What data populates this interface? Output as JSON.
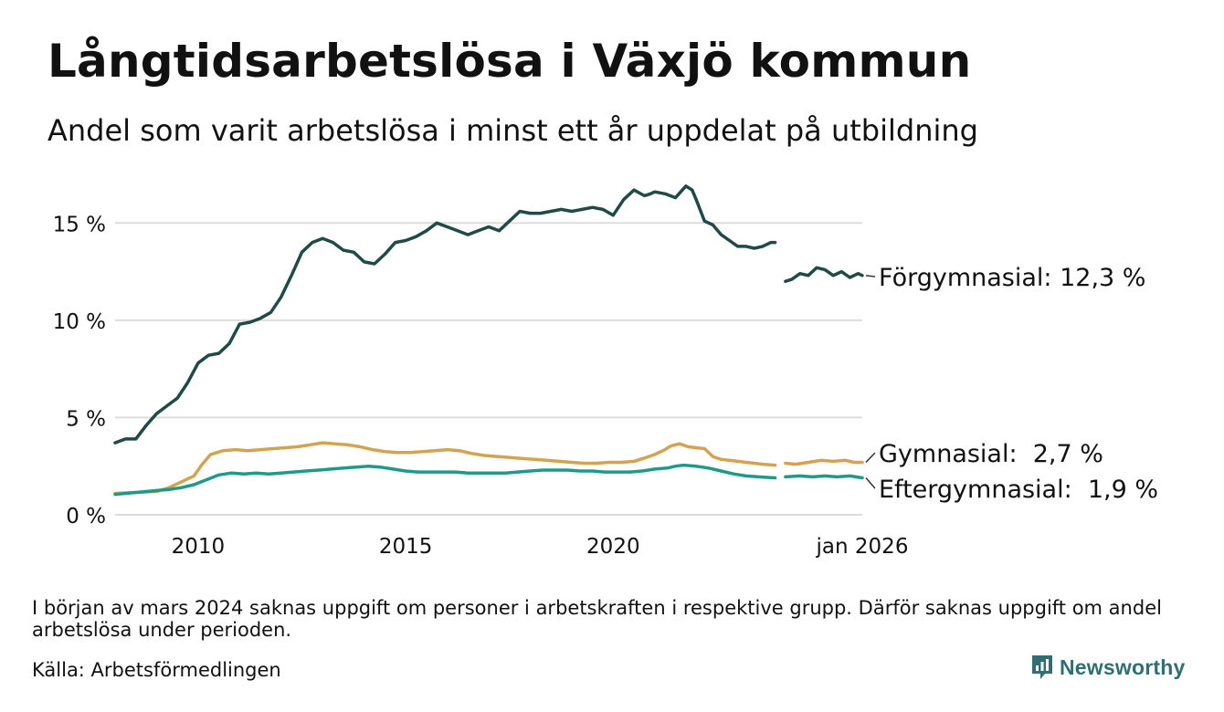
{
  "title": "Långtidsarbetslösa i Växjö kommun",
  "subtitle": "Andel som varit arbetslösa i minst ett år uppdelat på utbildning",
  "footnote": "I början av mars 2024 saknas uppgift om personer i arbetskraften i respektive grupp. Därför saknas uppgift om andel arbetslösa under perioden.",
  "source": "Källa: Arbetsförmedlingen",
  "brand": {
    "name": "Newsworthy",
    "icon": "newsworthy-logo-icon",
    "color": "#2f6f73"
  },
  "chart_data": {
    "type": "line",
    "title": "Långtidsarbetslösa i Växjö kommun",
    "xlabel": "",
    "ylabel": "",
    "xlim": [
      2008.0,
      2026.0
    ],
    "ylim": [
      0,
      17.5
    ],
    "yticks": [
      0,
      5,
      10,
      15
    ],
    "ytick_labels": [
      "0 %",
      "5 %",
      "10 %",
      "15 %"
    ],
    "xticks": [
      2010,
      2015,
      2020,
      2026
    ],
    "xtick_labels": [
      "2010",
      "2015",
      "2020",
      "jan 2026"
    ],
    "grid": "horizontal",
    "gap": [
      2023.9,
      2024.15
    ],
    "series": [
      {
        "name": "Förgymnasial",
        "label": "Förgymnasial: 12,3 %",
        "color": "#1f4a45",
        "x": [
          2008.0,
          2008.25,
          2008.5,
          2008.75,
          2009.0,
          2009.25,
          2009.5,
          2009.75,
          2010.0,
          2010.25,
          2010.5,
          2010.75,
          2011.0,
          2011.25,
          2011.5,
          2011.75,
          2012.0,
          2012.25,
          2012.5,
          2012.75,
          2013.0,
          2013.25,
          2013.5,
          2013.75,
          2014.0,
          2014.25,
          2014.5,
          2014.75,
          2015.0,
          2015.25,
          2015.5,
          2015.75,
          2016.0,
          2016.25,
          2016.5,
          2016.75,
          2017.0,
          2017.25,
          2017.5,
          2017.75,
          2018.0,
          2018.25,
          2018.5,
          2018.75,
          2019.0,
          2019.25,
          2019.5,
          2019.75,
          2020.0,
          2020.25,
          2020.5,
          2020.75,
          2020.9,
          2021.0,
          2021.25,
          2021.5,
          2021.75,
          2021.9,
          2022.0,
          2022.2,
          2022.4,
          2022.6,
          2022.8,
          2023.0,
          2023.2,
          2023.4,
          2023.6,
          2023.8,
          2023.9,
          2024.15,
          2024.3,
          2024.5,
          2024.7,
          2024.9,
          2025.1,
          2025.3,
          2025.5,
          2025.7,
          2025.9,
          2026.0
        ],
        "values": [
          3.7,
          3.9,
          3.9,
          4.6,
          5.2,
          5.6,
          6.0,
          6.8,
          7.8,
          8.2,
          8.3,
          8.8,
          9.8,
          9.9,
          10.1,
          10.4,
          11.2,
          12.3,
          13.5,
          14.0,
          14.2,
          14.0,
          13.6,
          13.5,
          13.0,
          12.9,
          13.4,
          14.0,
          14.1,
          14.3,
          14.6,
          15.0,
          14.8,
          14.6,
          14.4,
          14.6,
          14.8,
          14.6,
          15.1,
          15.6,
          15.5,
          15.5,
          15.6,
          15.7,
          15.6,
          15.7,
          15.8,
          15.7,
          15.4,
          16.2,
          16.7,
          16.4,
          16.5,
          16.6,
          16.5,
          16.3,
          16.9,
          16.7,
          16.2,
          15.1,
          14.9,
          14.4,
          14.1,
          13.8,
          13.8,
          13.7,
          13.8,
          14.0,
          14.0,
          12.0,
          12.1,
          12.4,
          12.3,
          12.7,
          12.6,
          12.3,
          12.5,
          12.2,
          12.4,
          12.3
        ]
      },
      {
        "name": "Gymnasial",
        "label": "Gymnasial:  2,7 %",
        "color": "#d4a351",
        "x": [
          2008.0,
          2008.5,
          2009.0,
          2009.3,
          2009.6,
          2009.9,
          2010.1,
          2010.3,
          2010.6,
          2010.9,
          2011.2,
          2011.5,
          2011.8,
          2012.1,
          2012.4,
          2012.7,
          2013.0,
          2013.3,
          2013.6,
          2013.9,
          2014.2,
          2014.5,
          2014.8,
          2015.1,
          2015.4,
          2015.7,
          2016.0,
          2016.3,
          2016.6,
          2016.9,
          2017.2,
          2017.5,
          2017.8,
          2018.1,
          2018.4,
          2018.7,
          2019.0,
          2019.3,
          2019.6,
          2019.9,
          2020.2,
          2020.5,
          2020.8,
          2021.0,
          2021.2,
          2021.4,
          2021.6,
          2021.8,
          2022.0,
          2022.2,
          2022.4,
          2022.6,
          2022.8,
          2023.0,
          2023.2,
          2023.4,
          2023.6,
          2023.9,
          2024.15,
          2024.4,
          2024.7,
          2025.0,
          2025.3,
          2025.6,
          2025.8,
          2026.0
        ],
        "values": [
          1.1,
          1.15,
          1.2,
          1.4,
          1.7,
          2.0,
          2.6,
          3.1,
          3.3,
          3.35,
          3.3,
          3.35,
          3.4,
          3.45,
          3.5,
          3.6,
          3.7,
          3.65,
          3.6,
          3.5,
          3.35,
          3.25,
          3.2,
          3.2,
          3.25,
          3.3,
          3.35,
          3.3,
          3.15,
          3.05,
          3.0,
          2.95,
          2.9,
          2.85,
          2.8,
          2.75,
          2.7,
          2.65,
          2.65,
          2.7,
          2.7,
          2.75,
          2.95,
          3.1,
          3.3,
          3.55,
          3.65,
          3.5,
          3.45,
          3.4,
          3.0,
          2.85,
          2.8,
          2.75,
          2.7,
          2.65,
          2.6,
          2.55,
          2.65,
          2.6,
          2.7,
          2.8,
          2.75,
          2.8,
          2.7,
          2.7
        ]
      },
      {
        "name": "Eftergymnasial",
        "label": "Eftergymnasial:  1,9 %",
        "color": "#1f9a8a",
        "x": [
          2008.0,
          2008.5,
          2009.0,
          2009.3,
          2009.6,
          2009.9,
          2010.2,
          2010.5,
          2010.8,
          2011.1,
          2011.4,
          2011.7,
          2012.0,
          2012.3,
          2012.6,
          2012.9,
          2013.2,
          2013.5,
          2013.8,
          2014.1,
          2014.4,
          2014.7,
          2015.0,
          2015.3,
          2015.6,
          2015.9,
          2016.2,
          2016.5,
          2016.8,
          2017.1,
          2017.4,
          2017.7,
          2018.0,
          2018.3,
          2018.6,
          2018.9,
          2019.2,
          2019.5,
          2019.8,
          2020.1,
          2020.4,
          2020.7,
          2021.0,
          2021.3,
          2021.5,
          2021.7,
          2022.0,
          2022.3,
          2022.6,
          2022.9,
          2023.2,
          2023.5,
          2023.9,
          2024.15,
          2024.5,
          2024.8,
          2025.1,
          2025.4,
          2025.7,
          2026.0
        ],
        "values": [
          1.05,
          1.15,
          1.25,
          1.3,
          1.4,
          1.55,
          1.8,
          2.05,
          2.15,
          2.1,
          2.15,
          2.1,
          2.15,
          2.2,
          2.25,
          2.3,
          2.35,
          2.4,
          2.45,
          2.5,
          2.45,
          2.35,
          2.25,
          2.2,
          2.2,
          2.2,
          2.2,
          2.15,
          2.15,
          2.15,
          2.15,
          2.2,
          2.25,
          2.3,
          2.3,
          2.3,
          2.25,
          2.25,
          2.2,
          2.2,
          2.2,
          2.25,
          2.35,
          2.4,
          2.5,
          2.55,
          2.5,
          2.4,
          2.25,
          2.1,
          2.0,
          1.95,
          1.9,
          1.95,
          2.0,
          1.95,
          2.0,
          1.95,
          2.0,
          1.9
        ]
      }
    ]
  }
}
